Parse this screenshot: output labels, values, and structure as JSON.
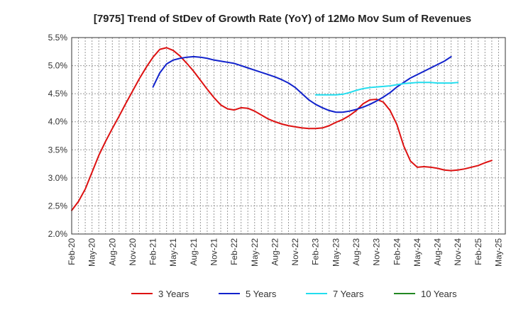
{
  "chart_data": {
    "type": "line",
    "title": "[7975]  Trend of StDev of Growth Rate (YoY) of 12Mo Mov Sum of Revenues",
    "xlabel": "",
    "ylabel": "",
    "x_start": "Feb-20",
    "x_step_months": 1,
    "x_tick_labels": [
      "Feb-20",
      "May-20",
      "Aug-20",
      "Nov-20",
      "Feb-21",
      "May-21",
      "Aug-21",
      "Nov-21",
      "Feb-22",
      "May-22",
      "Aug-22",
      "Nov-22",
      "Feb-23",
      "May-23",
      "Aug-23",
      "Nov-23",
      "Feb-24",
      "May-24",
      "Aug-24",
      "Nov-24",
      "Feb-25",
      "May-25"
    ],
    "y_tick_labels": [
      "2.0%",
      "2.5%",
      "3.0%",
      "3.5%",
      "4.0%",
      "4.5%",
      "5.0%",
      "5.5%"
    ],
    "ylim": [
      2.0,
      5.5
    ],
    "x_count": 64,
    "grid": true,
    "legend_position": "bottom",
    "series": [
      {
        "name": "3 Years",
        "color": "#dd1111",
        "start_index": 0,
        "values": [
          2.42,
          2.58,
          2.8,
          3.1,
          3.4,
          3.65,
          3.88,
          4.1,
          4.33,
          4.55,
          4.77,
          4.97,
          5.15,
          5.29,
          5.32,
          5.27,
          5.17,
          5.04,
          4.9,
          4.74,
          4.58,
          4.43,
          4.3,
          4.23,
          4.21,
          4.25,
          4.24,
          4.19,
          4.12,
          4.05,
          4.0,
          3.96,
          3.93,
          3.91,
          3.89,
          3.88,
          3.88,
          3.89,
          3.93,
          3.99,
          4.04,
          4.11,
          4.2,
          4.32,
          4.39,
          4.4,
          4.35,
          4.2,
          3.95,
          3.57,
          3.3,
          3.19,
          3.2,
          3.19,
          3.17,
          3.14,
          3.13,
          3.14,
          3.16,
          3.19,
          3.22,
          3.27,
          3.31
        ]
      },
      {
        "name": "5 Years",
        "color": "#1122cc",
        "start_index": 12,
        "values": [
          4.62,
          4.87,
          5.03,
          5.1,
          5.13,
          5.15,
          5.16,
          5.15,
          5.13,
          5.1,
          5.08,
          5.06,
          5.04,
          5.0,
          4.96,
          4.92,
          4.88,
          4.84,
          4.8,
          4.75,
          4.69,
          4.61,
          4.5,
          4.39,
          4.31,
          4.25,
          4.2,
          4.17,
          4.17,
          4.19,
          4.22,
          4.26,
          4.31,
          4.37,
          4.44,
          4.52,
          4.62,
          4.7,
          4.78,
          4.84,
          4.9,
          4.96,
          5.02,
          5.08,
          5.16
        ]
      },
      {
        "name": "7 Years",
        "color": "#22ddee",
        "start_index": 36,
        "values": [
          4.48,
          4.48,
          4.48,
          4.48,
          4.49,
          4.52,
          4.56,
          4.59,
          4.61,
          4.62,
          4.63,
          4.64,
          4.66,
          4.68,
          4.69,
          4.7,
          4.7,
          4.7,
          4.69,
          4.69,
          4.69,
          4.7
        ]
      },
      {
        "name": "10 Years",
        "color": "#228822",
        "start_index": 0,
        "values": []
      }
    ]
  }
}
